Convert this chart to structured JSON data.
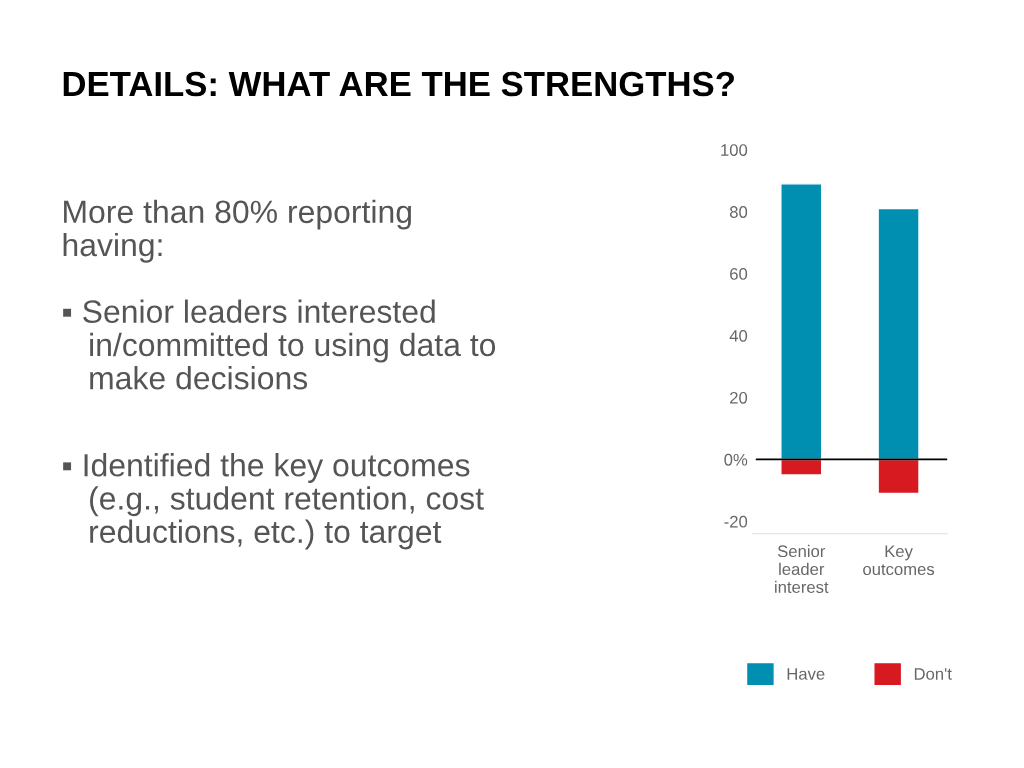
{
  "chart_data": {
    "type": "bar",
    "title": "DETAILS: WHAT ARE THE STRENGTHS?",
    "categories": [
      "Senior\nleader\ninterest",
      "Key\noutcomes"
    ],
    "series": [
      {
        "name": "Have",
        "color": "#008fb0",
        "values": [
          89,
          81
        ]
      },
      {
        "name": "Don't",
        "color": "#d71920",
        "values": [
          -5,
          -11
        ]
      }
    ],
    "stacked": true,
    "ylim": [
      -24,
      100
    ],
    "yticks": [
      100,
      80,
      60,
      40,
      20,
      {
        "value": 0,
        "label": "0%"
      },
      -20
    ],
    "ref_lines": [
      {
        "axis": "y",
        "value": 0,
        "color": "#000000"
      }
    ],
    "legend": "bottom",
    "grid": false,
    "annotations": [
      "More than 80% reporting\nhaving:",
      "▪ Senior leaders interested\n   in/committed to using data to\n   make decisions",
      "▪ Identified the key outcomes\n   (e.g., student retention, cost\n   reductions, etc.) to target"
    ]
  }
}
